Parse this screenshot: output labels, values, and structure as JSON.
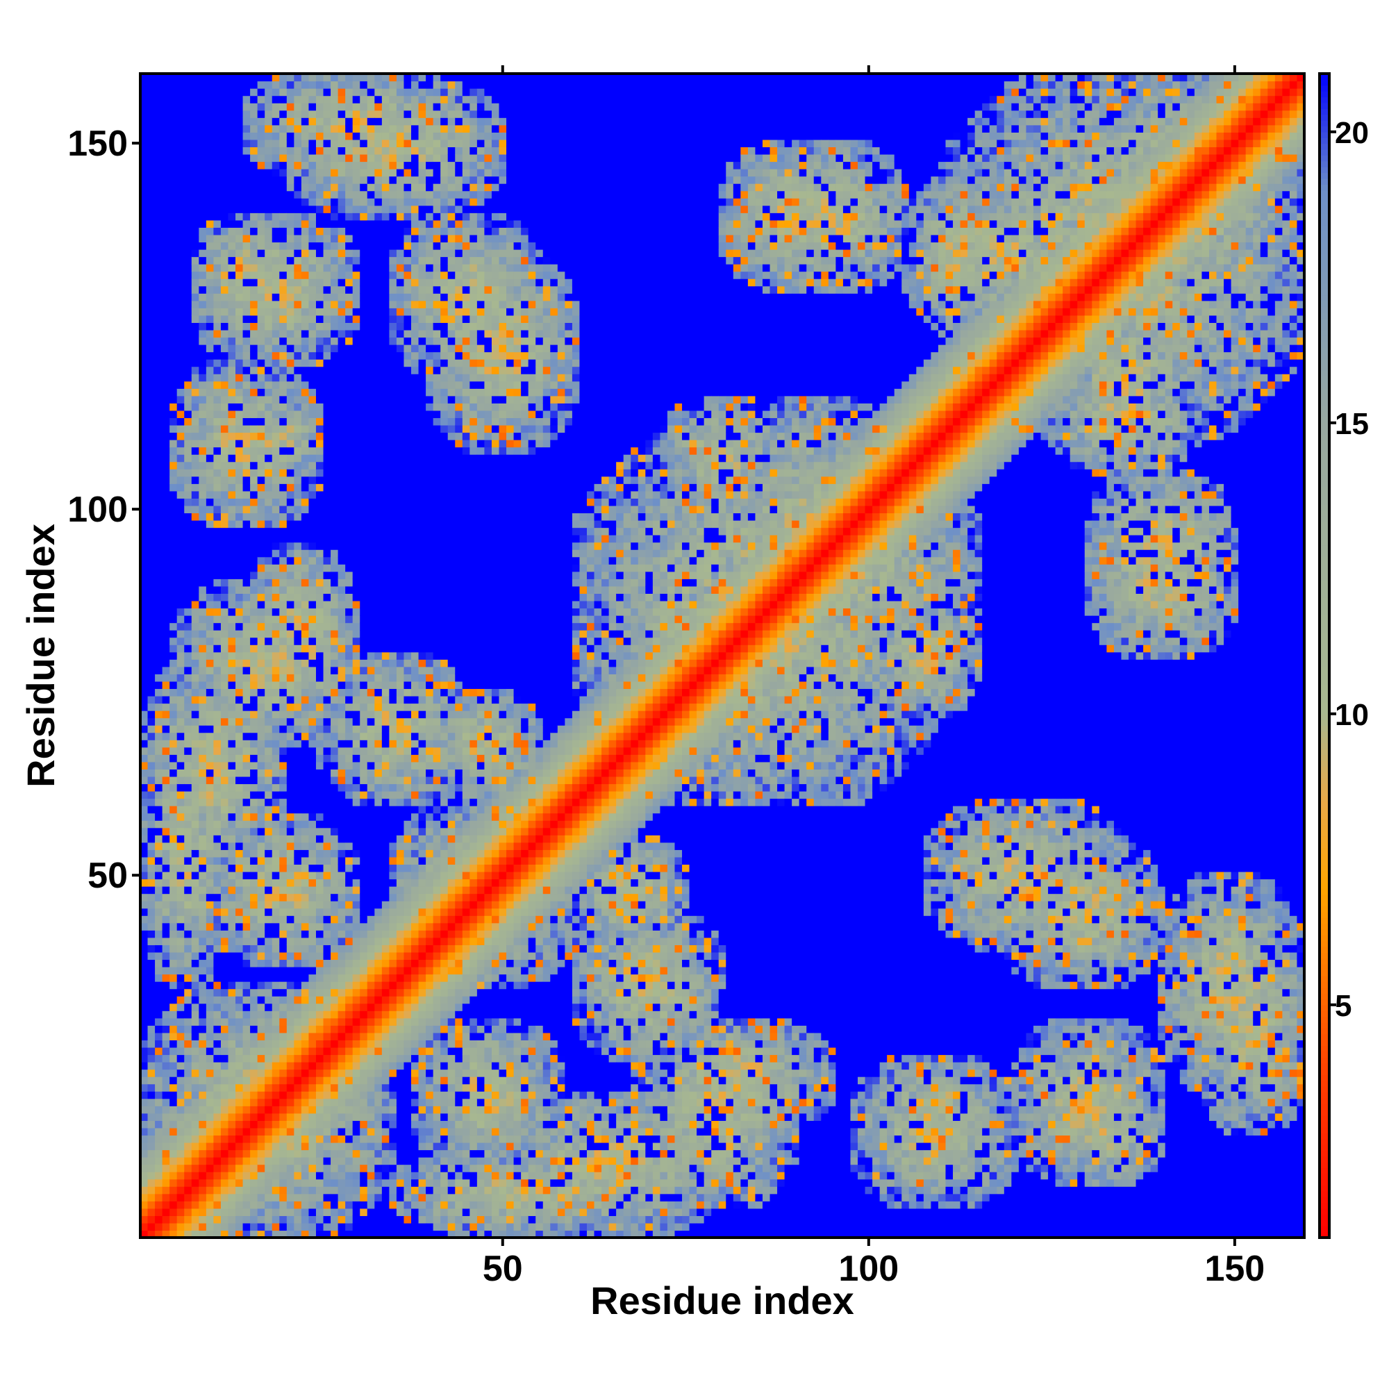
{
  "chart_data": {
    "type": "heatmap",
    "title": "",
    "xlabel": "Residue index",
    "ylabel": "Residue index",
    "xlim": [
      1,
      159
    ],
    "ylim": [
      1,
      159
    ],
    "x_ticks": [
      50,
      100,
      150
    ],
    "y_ticks": [
      50,
      100,
      150
    ],
    "n_residues": 159,
    "symmetric": true,
    "colorbar": {
      "range": [
        1,
        21
      ],
      "ticks": [
        5,
        10,
        15,
        20
      ],
      "scale": [
        {
          "value": 1,
          "color": "#ff0000"
        },
        {
          "value": 4,
          "color": "#ff4500"
        },
        {
          "value": 7,
          "color": "#ffa500"
        },
        {
          "value": 8.5,
          "color": "#e8a848"
        },
        {
          "value": 10,
          "color": "#a8b890"
        },
        {
          "value": 15,
          "color": "#98a8a0"
        },
        {
          "value": 19,
          "color": "#6e90c8"
        },
        {
          "value": 21,
          "color": "#0000ff"
        }
      ]
    },
    "diagonal": {
      "value_on_diagonal": 1,
      "band_halfwidth_residues": 12
    },
    "contact_blocks": [
      {
        "x": [
          1,
          35
        ],
        "y": [
          1,
          35
        ]
      },
      {
        "x": [
          35,
          60
        ],
        "y": [
          35,
          60
        ]
      },
      {
        "x": [
          60,
          110
        ],
        "y": [
          60,
          110
        ]
      },
      {
        "x": [
          110,
          159
        ],
        "y": [
          110,
          159
        ]
      },
      {
        "x": [
          1,
          12
        ],
        "y": [
          35,
          70
        ]
      },
      {
        "x": [
          10,
          30
        ],
        "y": [
          38,
          58
        ]
      },
      {
        "x": [
          25,
          45
        ],
        "y": [
          60,
          80
        ]
      },
      {
        "x": [
          5,
          30
        ],
        "y": [
          68,
          90
        ]
      },
      {
        "x": [
          15,
          25
        ],
        "y": [
          105,
          115
        ]
      },
      {
        "x": [
          8,
          22
        ],
        "y": [
          125,
          140
        ]
      },
      {
        "x": [
          15,
          45
        ],
        "y": [
          145,
          160
        ]
      },
      {
        "x": [
          35,
          55
        ],
        "y": [
          118,
          140
        ]
      },
      {
        "x": [
          50,
          80
        ],
        "y": [
          1,
          20
        ]
      },
      {
        "x": [
          70,
          95
        ],
        "y": [
          15,
          30
        ]
      },
      {
        "x": [
          98,
          120
        ],
        "y": [
          5,
          25
        ]
      },
      {
        "x": [
          120,
          140
        ],
        "y": [
          8,
          30
        ]
      },
      {
        "x": [
          140,
          159
        ],
        "y": [
          20,
          50
        ]
      },
      {
        "x": [
          108,
          135
        ],
        "y": [
          40,
          60
        ]
      },
      {
        "x": [
          60,
          75
        ],
        "y": [
          40,
          55
        ]
      },
      {
        "x": [
          75,
          115
        ],
        "y": [
          80,
          105
        ]
      },
      {
        "x": [
          100,
          115
        ],
        "y": [
          72,
          88
        ]
      },
      {
        "x": [
          85,
          105
        ],
        "y": [
          130,
          150
        ]
      },
      {
        "x": [
          130,
          150
        ],
        "y": [
          80,
          100
        ]
      },
      {
        "x": [
          125,
          145
        ],
        "y": [
          105,
          120
        ]
      },
      {
        "x": [
          108,
          128
        ],
        "y": [
          125,
          145
        ]
      },
      {
        "x": [
          125,
          159
        ],
        "y": [
          125,
          159
        ]
      }
    ]
  }
}
